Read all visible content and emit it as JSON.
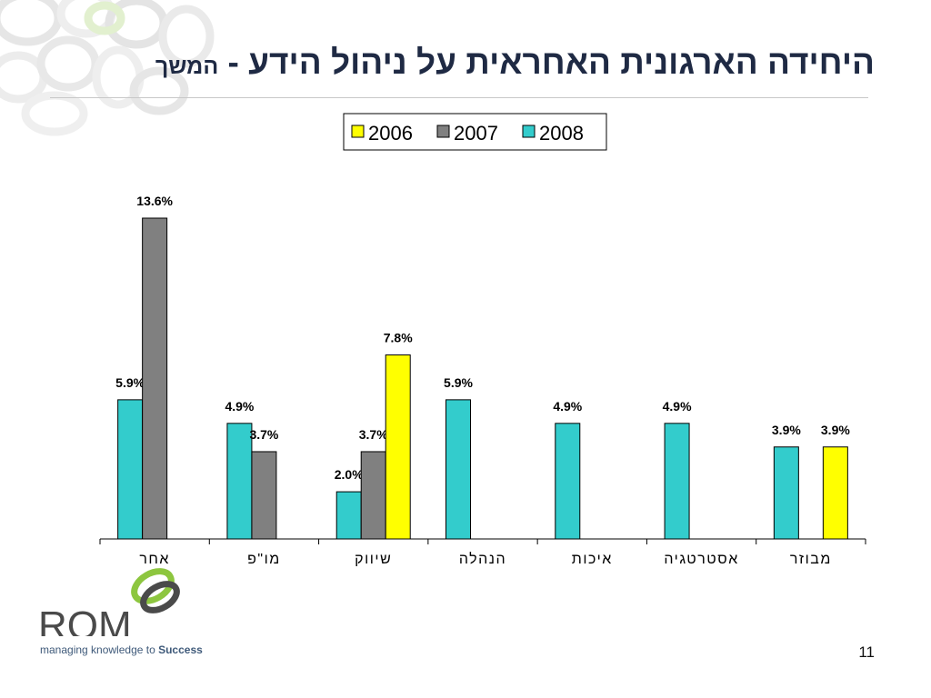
{
  "slide": {
    "title_main": "היחידה הארגונית האחראית על ניהול הידע",
    "title_suffix": "המשך",
    "page_number": "11"
  },
  "brand": {
    "logo_text": "ROM",
    "tagline_prefix": "managing knowledge to ",
    "tagline_bold": "Success",
    "logo_green": "#8dc63f",
    "logo_gray": "#4a4a4a"
  },
  "chart_data": {
    "type": "bar",
    "categories": [
      "מבוזר",
      "אסטרטגיה",
      "איכות",
      "הנהלה",
      "שיווק",
      "מו\"פ",
      "אחר"
    ],
    "series": [
      {
        "name": "2008",
        "color": "#33cccc",
        "values": [
          3.9,
          4.9,
          4.9,
          5.9,
          2.0,
          4.9,
          5.9
        ]
      },
      {
        "name": "2007",
        "color": "#808080",
        "values": [
          null,
          null,
          null,
          null,
          3.7,
          3.7,
          13.6
        ]
      },
      {
        "name": "2006",
        "color": "#ffff00",
        "values": [
          3.9,
          null,
          null,
          null,
          7.8,
          null,
          null
        ]
      }
    ],
    "legend_order": [
      "2006",
      "2007",
      "2008"
    ],
    "value_suffix": "%",
    "ylim": [
      0,
      14
    ],
    "legend_position": "top-center",
    "grid": false
  }
}
